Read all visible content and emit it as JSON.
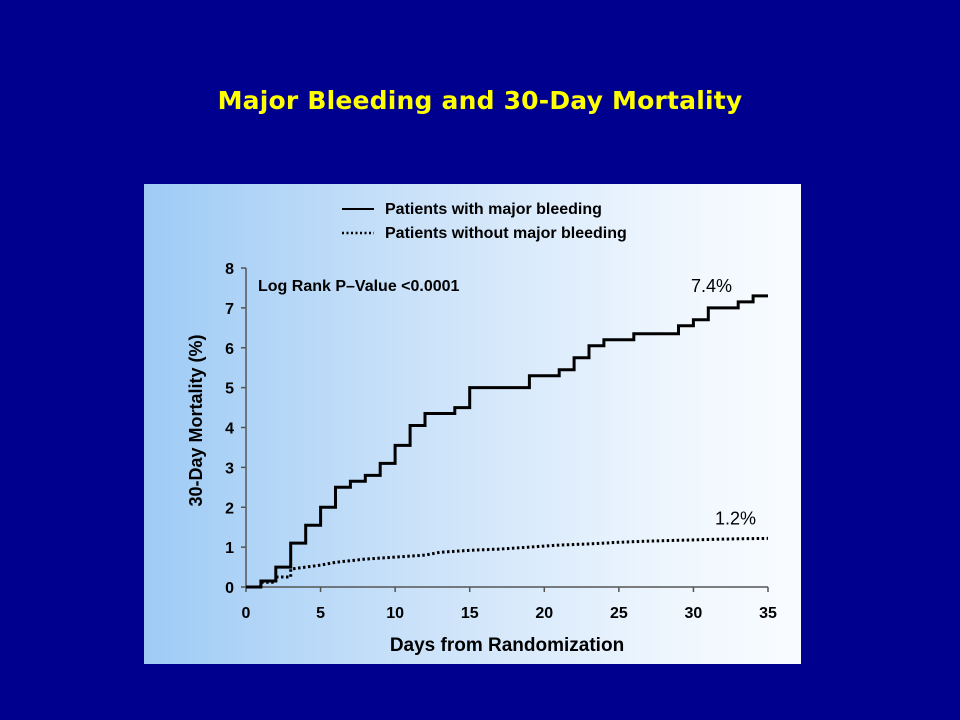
{
  "slide": {
    "title": "Major Bleeding and 30-Day Mortality"
  },
  "chart_data": {
    "type": "line",
    "xlabel": "Days from Randomization",
    "ylabel": "30-Day Mortality (%)",
    "xlim": [
      0,
      35
    ],
    "ylim": [
      0,
      8
    ],
    "xticks": [
      0,
      5,
      10,
      15,
      20,
      25,
      30,
      35
    ],
    "yticks": [
      0,
      1,
      2,
      3,
      4,
      5,
      6,
      7,
      8
    ],
    "legend": {
      "placement": "top-center",
      "entries": [
        "Patients with major bleeding",
        "Patients without major bleeding"
      ]
    },
    "annotation": "Log Rank P–Value <0.0001",
    "series": [
      {
        "name": "Patients with major bleeding",
        "style": "solid",
        "end_label": "7.4%",
        "x": [
          0,
          1,
          1,
          2,
          2,
          3,
          3,
          4,
          4,
          5,
          5,
          6,
          6,
          7,
          7,
          8,
          8,
          9,
          9,
          10,
          10,
          11,
          11,
          12,
          12,
          14,
          14,
          15,
          15,
          19,
          19,
          21,
          21,
          22,
          22,
          23,
          23,
          24,
          24,
          26,
          26,
          29,
          29,
          30,
          30,
          31,
          31,
          33,
          33,
          34,
          34,
          35
        ],
        "y": [
          0,
          0,
          0.15,
          0.15,
          0.5,
          0.5,
          1.1,
          1.1,
          1.55,
          1.55,
          2.0,
          2.0,
          2.5,
          2.5,
          2.65,
          2.65,
          2.8,
          2.8,
          3.1,
          3.1,
          3.55,
          3.55,
          4.05,
          4.05,
          4.35,
          4.35,
          4.5,
          4.5,
          5.0,
          5.0,
          5.3,
          5.3,
          5.45,
          5.45,
          5.75,
          5.75,
          6.05,
          6.05,
          6.2,
          6.2,
          6.35,
          6.35,
          6.55,
          6.55,
          6.7,
          6.7,
          7.0,
          7.0,
          7.15,
          7.15,
          7.3,
          7.3
        ]
      },
      {
        "name": "Patients without major bleeding",
        "style": "dotted",
        "end_label": "1.2%",
        "x": [
          0,
          1,
          1,
          2,
          2,
          3,
          3,
          4,
          5,
          6,
          8,
          10,
          12,
          13,
          15,
          17,
          19,
          21,
          23,
          25,
          27,
          29,
          31,
          33,
          35
        ],
        "y": [
          0,
          0,
          0.12,
          0.12,
          0.25,
          0.25,
          0.45,
          0.5,
          0.55,
          0.62,
          0.7,
          0.75,
          0.8,
          0.87,
          0.92,
          0.95,
          1.0,
          1.05,
          1.08,
          1.12,
          1.15,
          1.17,
          1.19,
          1.21,
          1.22
        ]
      }
    ]
  }
}
